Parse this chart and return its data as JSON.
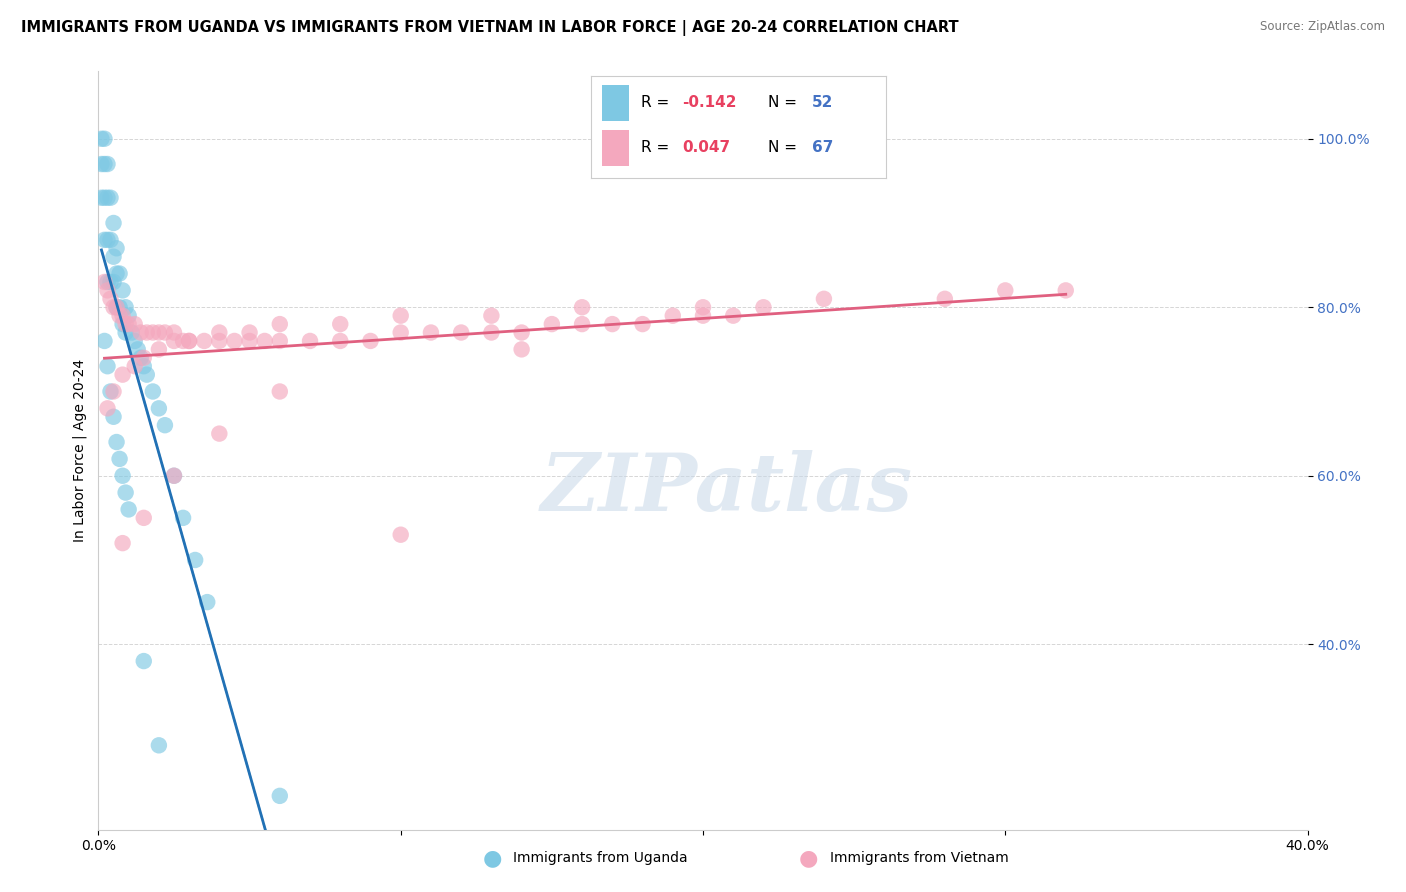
{
  "title": "IMMIGRANTS FROM UGANDA VS IMMIGRANTS FROM VIETNAM IN LABOR FORCE | AGE 20-24 CORRELATION CHART",
  "source": "Source: ZipAtlas.com",
  "ylabel": "In Labor Force | Age 20-24",
  "xlim": [
    0.0,
    0.4
  ],
  "ylim": [
    0.18,
    1.08
  ],
  "uganda_R": -0.142,
  "uganda_N": 52,
  "vietnam_R": 0.047,
  "vietnam_N": 67,
  "uganda_color": "#7ec8e3",
  "vietnam_color": "#f4a8be",
  "uganda_line_color": "#2171b5",
  "vietnam_line_color": "#e06080",
  "dashed_line_color": "#a0b8d0",
  "watermark_text": "ZIPatlas",
  "watermark_color": "#c8d8e8",
  "background_color": "#ffffff",
  "title_fontsize": 10.5,
  "axis_label_fontsize": 10,
  "tick_fontsize": 10,
  "tick_color": "#4472c4",
  "legend_R_color": "#e84060",
  "legend_N_color": "#4472c4",
  "uganda_x": [
    0.001,
    0.001,
    0.001,
    0.002,
    0.002,
    0.002,
    0.002,
    0.003,
    0.003,
    0.003,
    0.003,
    0.004,
    0.004,
    0.004,
    0.005,
    0.005,
    0.005,
    0.006,
    0.006,
    0.006,
    0.007,
    0.007,
    0.008,
    0.008,
    0.009,
    0.009,
    0.01,
    0.011,
    0.012,
    0.013,
    0.014,
    0.015,
    0.016,
    0.018,
    0.02,
    0.022,
    0.025,
    0.028,
    0.032,
    0.036,
    0.002,
    0.003,
    0.004,
    0.005,
    0.006,
    0.007,
    0.008,
    0.009,
    0.01,
    0.015,
    0.02,
    0.06
  ],
  "uganda_y": [
    1.0,
    0.97,
    0.93,
    1.0,
    0.97,
    0.93,
    0.88,
    0.97,
    0.93,
    0.88,
    0.83,
    0.93,
    0.88,
    0.83,
    0.9,
    0.86,
    0.83,
    0.87,
    0.84,
    0.8,
    0.84,
    0.8,
    0.82,
    0.78,
    0.8,
    0.77,
    0.79,
    0.77,
    0.76,
    0.75,
    0.74,
    0.73,
    0.72,
    0.7,
    0.68,
    0.66,
    0.6,
    0.55,
    0.5,
    0.45,
    0.76,
    0.73,
    0.7,
    0.67,
    0.64,
    0.62,
    0.6,
    0.58,
    0.56,
    0.38,
    0.28,
    0.22
  ],
  "vietnam_x": [
    0.002,
    0.003,
    0.004,
    0.005,
    0.006,
    0.007,
    0.008,
    0.009,
    0.01,
    0.012,
    0.014,
    0.016,
    0.018,
    0.02,
    0.022,
    0.025,
    0.028,
    0.03,
    0.035,
    0.04,
    0.045,
    0.05,
    0.055,
    0.06,
    0.07,
    0.08,
    0.09,
    0.1,
    0.11,
    0.12,
    0.13,
    0.14,
    0.15,
    0.16,
    0.17,
    0.18,
    0.19,
    0.2,
    0.21,
    0.22,
    0.003,
    0.005,
    0.008,
    0.012,
    0.015,
    0.02,
    0.025,
    0.03,
    0.04,
    0.05,
    0.06,
    0.08,
    0.1,
    0.13,
    0.16,
    0.2,
    0.24,
    0.28,
    0.3,
    0.32,
    0.008,
    0.015,
    0.025,
    0.04,
    0.06,
    0.1,
    0.14
  ],
  "vietnam_y": [
    0.83,
    0.82,
    0.81,
    0.8,
    0.8,
    0.79,
    0.79,
    0.78,
    0.78,
    0.78,
    0.77,
    0.77,
    0.77,
    0.77,
    0.77,
    0.77,
    0.76,
    0.76,
    0.76,
    0.76,
    0.76,
    0.76,
    0.76,
    0.76,
    0.76,
    0.76,
    0.76,
    0.77,
    0.77,
    0.77,
    0.77,
    0.77,
    0.78,
    0.78,
    0.78,
    0.78,
    0.79,
    0.79,
    0.79,
    0.8,
    0.68,
    0.7,
    0.72,
    0.73,
    0.74,
    0.75,
    0.76,
    0.76,
    0.77,
    0.77,
    0.78,
    0.78,
    0.79,
    0.79,
    0.8,
    0.8,
    0.81,
    0.81,
    0.82,
    0.82,
    0.52,
    0.55,
    0.6,
    0.65,
    0.7,
    0.53,
    0.75
  ]
}
